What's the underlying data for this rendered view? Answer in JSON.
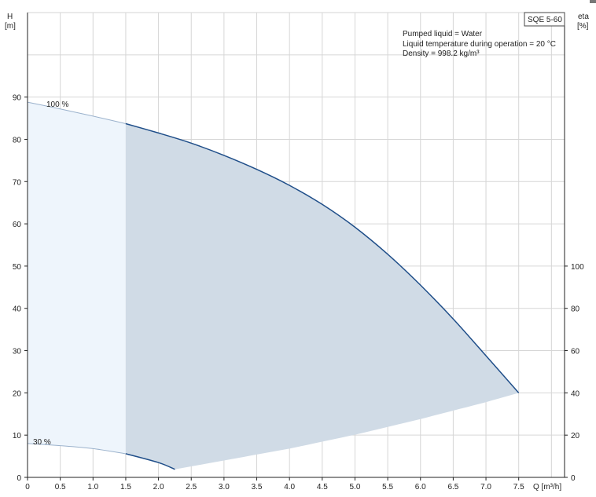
{
  "chart_data": {
    "type": "area",
    "title_box": "SQE 5-60",
    "info_lines": [
      "Pumped liquid = Water",
      "Liquid temperature during operation = 20 °C",
      "Density = 998.2 kg/m³"
    ],
    "y_axis_left": {
      "label": "H",
      "unit": "[m]",
      "ticks": [
        0,
        10,
        20,
        30,
        40,
        50,
        60,
        70,
        80,
        90
      ],
      "ylim": [
        0,
        110
      ]
    },
    "y_axis_right": {
      "label": "eta",
      "unit": "[%]",
      "ticks": [
        0,
        20,
        40,
        60,
        80,
        100
      ],
      "ylim": [
        0,
        100
      ]
    },
    "x_axis": {
      "label": "Q [m³/h]",
      "ticks": [
        "0",
        "0.5",
        "1.0",
        "1.5",
        "2.0",
        "2.5",
        "3.0",
        "3.5",
        "4.0",
        "4.5",
        "5.0",
        "5.5",
        "6.0",
        "6.5",
        "7.0",
        "7.5"
      ],
      "xlim": [
        0,
        8.2
      ]
    },
    "grid": true,
    "curve_labels": [
      "100 %",
      "30 %"
    ],
    "series": [
      {
        "name": "100 %",
        "points": [
          [
            0,
            88.8
          ],
          [
            0.5,
            87.2
          ],
          [
            1.0,
            85.5
          ],
          [
            1.5,
            83.7
          ],
          [
            2.0,
            81.5
          ],
          [
            2.5,
            79.1
          ],
          [
            3.0,
            76.2
          ],
          [
            3.5,
            72.9
          ],
          [
            4.0,
            69.1
          ],
          [
            4.5,
            64.6
          ],
          [
            5.0,
            59.2
          ],
          [
            5.5,
            52.8
          ],
          [
            6.0,
            45.5
          ],
          [
            6.5,
            37.5
          ],
          [
            7.0,
            28.8
          ],
          [
            7.5,
            20.0
          ]
        ]
      },
      {
        "name": "30 %",
        "points": [
          [
            0,
            8.0
          ],
          [
            0.5,
            7.5
          ],
          [
            1.0,
            6.8
          ],
          [
            1.5,
            5.6
          ],
          [
            2.0,
            3.5
          ],
          [
            2.25,
            1.9
          ]
        ]
      }
    ],
    "bottom_boundary": [
      [
        2.25,
        1.9
      ],
      [
        3.0,
        4.0
      ],
      [
        4.0,
        6.8
      ],
      [
        5.0,
        10.1
      ],
      [
        6.0,
        13.8
      ],
      [
        6.5,
        15.8
      ],
      [
        7.0,
        17.8
      ],
      [
        7.5,
        20.0
      ]
    ],
    "colors": {
      "curve": "#1f4e89",
      "region_light": "#eef5fc",
      "region_dark": "#d0dbe6",
      "grid": "#d6d6d6"
    }
  }
}
